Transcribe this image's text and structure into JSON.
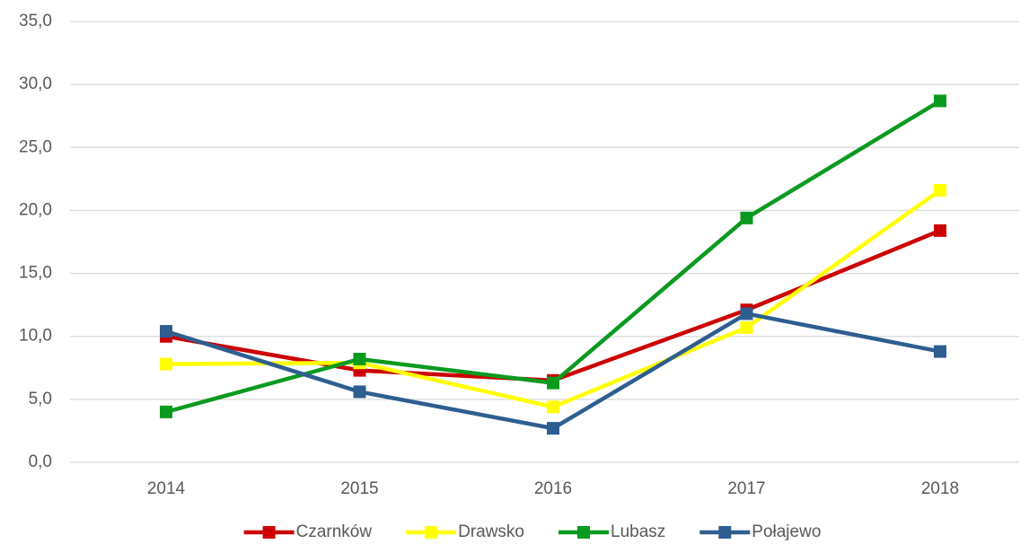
{
  "chart_data": {
    "type": "line",
    "categories": [
      "2014",
      "2015",
      "2016",
      "2017",
      "2018"
    ],
    "series": [
      {
        "name": "Czarnków",
        "color": "#cc0000",
        "values": [
          10.0,
          7.3,
          6.5,
          12.1,
          18.4
        ]
      },
      {
        "name": "Drawsko",
        "color": "#ffff00",
        "values": [
          7.8,
          7.9,
          4.4,
          10.7,
          21.6
        ]
      },
      {
        "name": "Lubasz",
        "color": "#0a9a1f",
        "values": [
          4.0,
          8.2,
          6.3,
          19.4,
          28.7
        ]
      },
      {
        "name": "Połajewo",
        "color": "#2e5e90",
        "values": [
          10.4,
          5.6,
          2.7,
          11.8,
          8.8
        ]
      }
    ],
    "ylim": [
      0,
      35
    ],
    "yticks": [
      {
        "value": 0,
        "label": "0,0"
      },
      {
        "value": 5,
        "label": "5,0"
      },
      {
        "value": 10,
        "label": "10,0"
      },
      {
        "value": 15,
        "label": "15,0"
      },
      {
        "value": 20,
        "label": "20,0"
      },
      {
        "value": 25,
        "label": "25,0"
      },
      {
        "value": 30,
        "label": "30,0"
      },
      {
        "value": 35,
        "label": "35,0"
      }
    ],
    "grid": true,
    "legend": "bottom"
  }
}
